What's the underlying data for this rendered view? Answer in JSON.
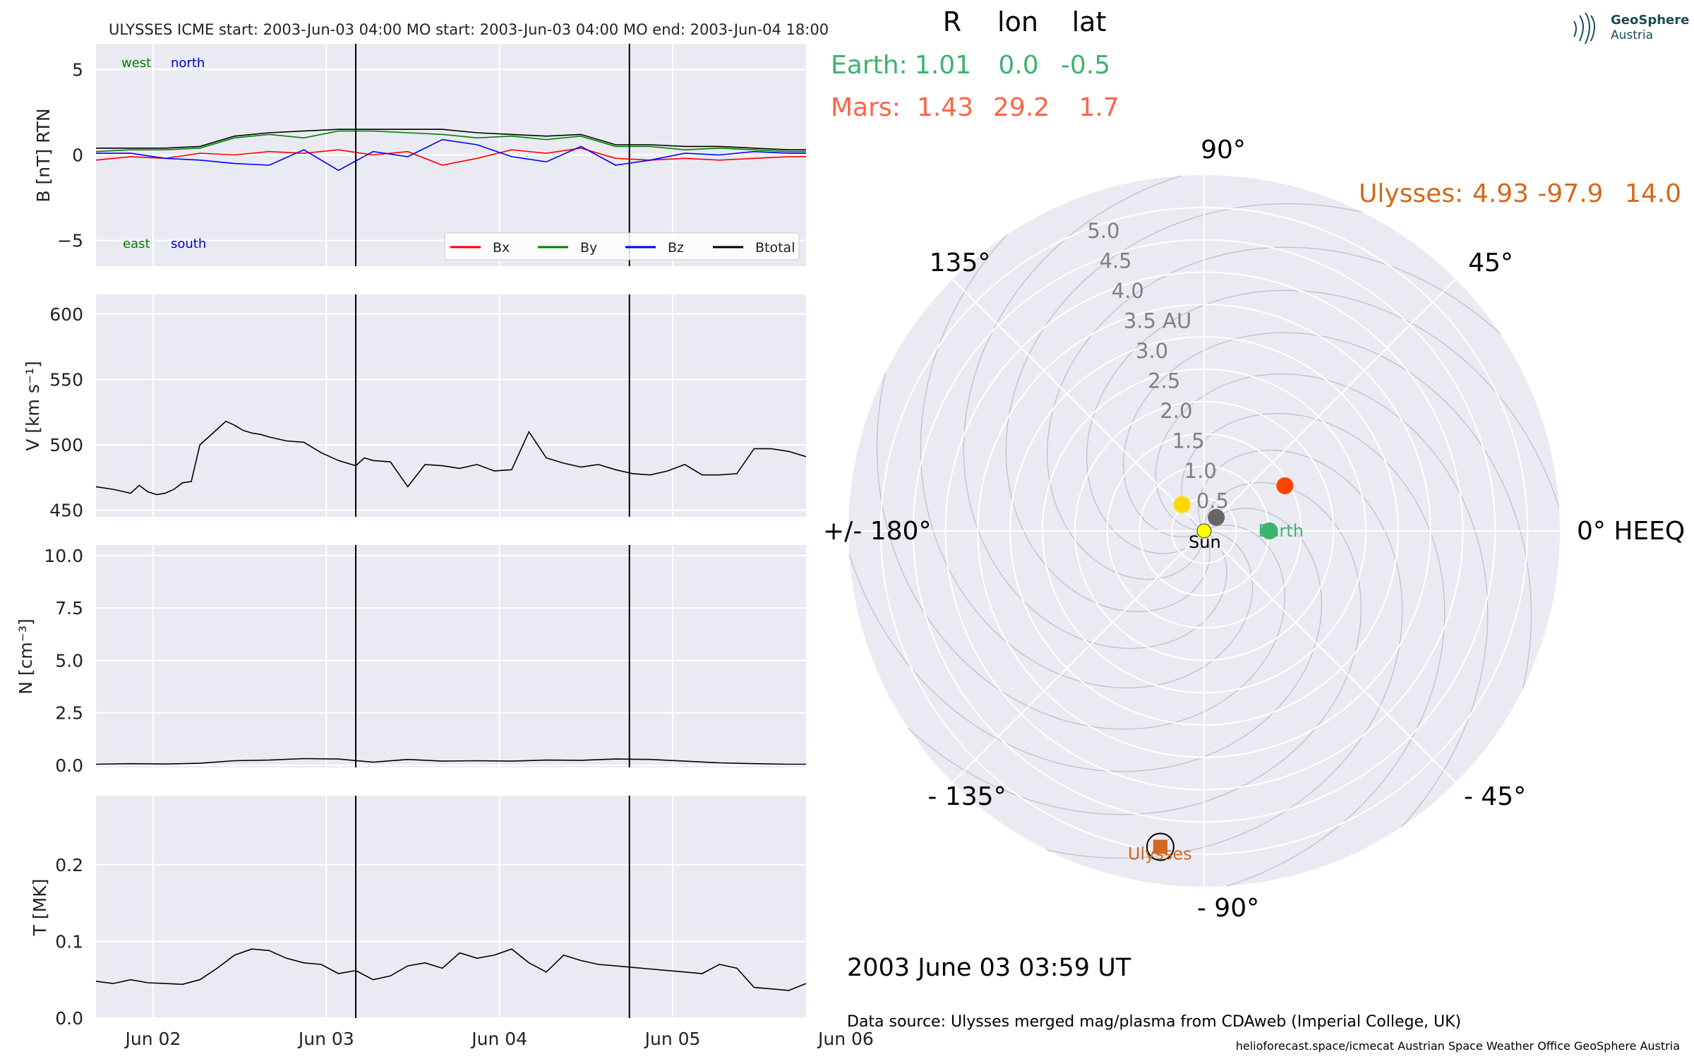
{
  "logo": {
    "line1": "GeoSphere",
    "line2": "Austria"
  },
  "header_title": "ULYSSES    ICME start: 2003-Jun-03 04:00   MO start: 2003-Jun-03 04:00   MO end: 2003-Jun-04 18:00",
  "chart_data": [
    {
      "type": "line",
      "panel": "magnetic field",
      "ylabel": "B [nT] RTN",
      "ylim": [
        -6.5,
        6.5
      ],
      "yticks": [
        "5",
        "0",
        "−5"
      ],
      "ytick_values": [
        5,
        0,
        -5
      ],
      "xlim": [
        0,
        4.1
      ],
      "annotations": {
        "west": "west",
        "north": "north",
        "east": "east",
        "south": "south"
      },
      "legend": [
        "Bx",
        "By",
        "Bz",
        "Btotal"
      ],
      "legend_placement": "lower-right",
      "series": [
        {
          "name": "Bx",
          "color": "#ff0000",
          "x": [
            0,
            0.2,
            0.4,
            0.6,
            0.8,
            1.0,
            1.2,
            1.4,
            1.6,
            1.8,
            2.0,
            2.2,
            2.4,
            2.6,
            2.8,
            3.0,
            3.2,
            3.4,
            3.6,
            3.8,
            4.0,
            4.1
          ],
          "values": [
            -0.3,
            -0.1,
            -0.2,
            0.1,
            0.0,
            0.2,
            0.1,
            0.3,
            0.0,
            0.2,
            -0.6,
            -0.2,
            0.3,
            0.1,
            0.4,
            -0.2,
            -0.3,
            -0.2,
            -0.3,
            -0.2,
            -0.1,
            -0.1
          ]
        },
        {
          "name": "By",
          "color": "#008000",
          "x": [
            0,
            0.2,
            0.4,
            0.6,
            0.8,
            1.0,
            1.2,
            1.4,
            1.6,
            1.8,
            2.0,
            2.2,
            2.4,
            2.6,
            2.8,
            3.0,
            3.2,
            3.4,
            3.6,
            3.8,
            4.0,
            4.1
          ],
          "values": [
            0.2,
            0.3,
            0.3,
            0.4,
            1.0,
            1.2,
            1.0,
            1.4,
            1.4,
            1.3,
            1.2,
            1.0,
            1.1,
            0.9,
            1.1,
            0.5,
            0.5,
            0.3,
            0.4,
            0.3,
            0.2,
            0.2
          ]
        },
        {
          "name": "Bz",
          "color": "#0000ff",
          "x": [
            0,
            0.2,
            0.4,
            0.6,
            0.8,
            1.0,
            1.2,
            1.4,
            1.6,
            1.8,
            2.0,
            2.2,
            2.4,
            2.6,
            2.8,
            3.0,
            3.2,
            3.4,
            3.6,
            3.8,
            4.0,
            4.1
          ],
          "values": [
            0.1,
            0.1,
            -0.2,
            -0.3,
            -0.5,
            -0.6,
            0.3,
            -0.9,
            0.2,
            -0.1,
            0.9,
            0.6,
            -0.1,
            -0.4,
            0.5,
            -0.6,
            -0.3,
            0.1,
            0.0,
            0.2,
            0.1,
            0.1
          ]
        },
        {
          "name": "Btotal",
          "color": "#000000",
          "x": [
            0,
            0.2,
            0.4,
            0.6,
            0.8,
            1.0,
            1.2,
            1.4,
            1.6,
            1.8,
            2.0,
            2.2,
            2.4,
            2.6,
            2.8,
            3.0,
            3.2,
            3.4,
            3.6,
            3.8,
            4.0,
            4.1
          ],
          "values": [
            0.4,
            0.4,
            0.4,
            0.5,
            1.1,
            1.3,
            1.4,
            1.5,
            1.5,
            1.5,
            1.5,
            1.3,
            1.2,
            1.1,
            1.2,
            0.6,
            0.6,
            0.5,
            0.5,
            0.4,
            0.3,
            0.3
          ]
        }
      ]
    },
    {
      "type": "line",
      "panel": "speed",
      "ylabel": "V [km s⁻¹]",
      "ylim": [
        445,
        615
      ],
      "yticks": [
        "600",
        "550",
        "500",
        "450"
      ],
      "ytick_values": [
        600,
        550,
        500,
        450
      ],
      "series": [
        {
          "name": "",
          "color": "#000000",
          "x": [
            0,
            0.1,
            0.2,
            0.25,
            0.3,
            0.35,
            0.4,
            0.45,
            0.5,
            0.55,
            0.6,
            0.7,
            0.75,
            0.8,
            0.85,
            0.9,
            0.95,
            1.0,
            1.1,
            1.2,
            1.3,
            1.4,
            1.5,
            1.55,
            1.6,
            1.7,
            1.8,
            1.9,
            2.0,
            2.1,
            2.2,
            2.3,
            2.4,
            2.5,
            2.6,
            2.7,
            2.8,
            2.9,
            3.0,
            3.1,
            3.2,
            3.3,
            3.4,
            3.5,
            3.6,
            3.7,
            3.8,
            3.9,
            4.0,
            4.1
          ],
          "values": [
            468,
            466,
            463,
            469,
            464,
            462,
            463,
            466,
            471,
            472,
            500,
            512,
            518,
            515,
            511,
            509,
            508,
            506,
            503,
            502,
            494,
            488,
            484,
            490,
            488,
            487,
            468,
            485,
            484,
            482,
            485,
            480,
            481,
            510,
            490,
            486,
            483,
            485,
            481,
            478,
            477,
            480,
            485,
            477,
            477,
            478,
            497,
            497,
            495,
            491
          ]
        }
      ]
    },
    {
      "type": "line",
      "panel": "density",
      "ylabel": "N [cm⁻³]",
      "ylim": [
        -0.1,
        10.5
      ],
      "yticks": [
        "10.0",
        "7.5",
        "5.0",
        "2.5",
        "0.0"
      ],
      "ytick_values": [
        10,
        7.5,
        5,
        2.5,
        0
      ],
      "series": [
        {
          "name": "",
          "color": "#000000",
          "x": [
            0,
            0.2,
            0.4,
            0.6,
            0.8,
            1.0,
            1.2,
            1.4,
            1.6,
            1.8,
            2.0,
            2.2,
            2.4,
            2.6,
            2.8,
            3.0,
            3.2,
            3.4,
            3.6,
            3.8,
            4.0,
            4.1
          ],
          "values": [
            0.05,
            0.08,
            0.06,
            0.1,
            0.22,
            0.25,
            0.32,
            0.3,
            0.15,
            0.28,
            0.2,
            0.22,
            0.2,
            0.25,
            0.24,
            0.3,
            0.28,
            0.2,
            0.12,
            0.08,
            0.05,
            0.05
          ]
        }
      ]
    },
    {
      "type": "line",
      "panel": "temperature",
      "ylabel": "T [MK]",
      "ylim": [
        0,
        0.29
      ],
      "yticks": [
        "0.2",
        "0.1",
        "0.0"
      ],
      "ytick_values": [
        0.2,
        0.1,
        0.0
      ],
      "xticks": [
        "Jun 02",
        "Jun 03",
        "Jun 04",
        "Jun 05",
        "Jun 06"
      ],
      "xtick_values": [
        0.33,
        1.33,
        2.33,
        3.33,
        4.33
      ],
      "series": [
        {
          "name": "",
          "color": "#000000",
          "x": [
            0,
            0.1,
            0.2,
            0.3,
            0.4,
            0.5,
            0.6,
            0.7,
            0.8,
            0.9,
            1.0,
            1.1,
            1.2,
            1.3,
            1.4,
            1.5,
            1.6,
            1.7,
            1.8,
            1.9,
            2.0,
            2.1,
            2.2,
            2.3,
            2.4,
            2.5,
            2.6,
            2.7,
            2.8,
            2.9,
            3.0,
            3.1,
            3.2,
            3.3,
            3.4,
            3.5,
            3.6,
            3.7,
            3.8,
            3.9,
            4.0,
            4.1
          ],
          "values": [
            0.048,
            0.045,
            0.05,
            0.046,
            0.045,
            0.044,
            0.05,
            0.065,
            0.082,
            0.09,
            0.088,
            0.078,
            0.072,
            0.07,
            0.058,
            0.062,
            0.05,
            0.055,
            0.068,
            0.072,
            0.065,
            0.085,
            0.078,
            0.082,
            0.09,
            0.072,
            0.06,
            0.082,
            0.075,
            0.07,
            0.068,
            0.066,
            0.064,
            0.062,
            0.06,
            0.058,
            0.07,
            0.065,
            0.04,
            0.038,
            0.036,
            0.045
          ]
        }
      ]
    },
    {
      "type": "scatter",
      "panel": "polar position plot",
      "projection": "polar",
      "angle_labels": {
        "a0": "0° HEEQ",
        "a45": "45°",
        "a90": "90°",
        "a135": "135°",
        "a180": "+/- 180°",
        "am135": "- 135°",
        "am90": "- 90°",
        "am45": "- 45°"
      },
      "radial_ticks": [
        "0.5",
        "1.0",
        "1.5",
        "2.0",
        "2.5",
        "3.0",
        "3.5 AU",
        "4.0",
        "4.5",
        "5.0"
      ],
      "radial_tick_values": [
        0.5,
        1.0,
        1.5,
        2.0,
        2.5,
        3.0,
        3.5,
        4.0,
        4.5,
        5.0
      ],
      "rlim": [
        0,
        5.5
      ],
      "points": [
        {
          "name": "Sun",
          "r": 0.0,
          "lon": 0.0,
          "color": "#ffff00"
        },
        {
          "name": "Earth",
          "r": 1.01,
          "lon": 0.0,
          "color": "#3cb371"
        },
        {
          "name": "Mars",
          "r": 1.43,
          "lon": 29.2,
          "color": "#ff4500"
        },
        {
          "name": "Ulysses",
          "r": 4.93,
          "lon": -97.9,
          "color": "#d2691e"
        },
        {
          "name": "",
          "r": 0.53,
          "lon": 130.0,
          "color": "#ffd700"
        },
        {
          "name": "",
          "r": 0.28,
          "lon": 48.0,
          "color": "#666666"
        }
      ]
    }
  ],
  "position_table": {
    "headers": [
      "R",
      "lon",
      "lat"
    ],
    "rows": [
      {
        "label": "Earth:",
        "R": "1.01",
        "lon": "0.0",
        "lat": "-0.5",
        "color": "#3cb371"
      },
      {
        "label": "Mars:",
        "R": "1.43",
        "lon": "29.2",
        "lat": "1.7",
        "color": "#ff6347"
      }
    ],
    "ulysses": {
      "label": "Ulysses:",
      "R": "4.93",
      "lon": "-97.9",
      "lat": "14.0",
      "color": "#d2691e"
    }
  },
  "labels": {
    "sun": "Sun",
    "earth": "Earth",
    "ulysses": "Ulysses"
  },
  "timestamp": "2003 June 03  03:59 UT",
  "data_source": "Data source: Ulysses merged mag/plasma from CDAweb (Imperial College, UK)",
  "footer": "helioforecast.space/icmecat   Austrian Space Weather Office   GeoSphere Austria",
  "events": {
    "mo_start_x": 1.5,
    "mo_end_x": 3.08
  }
}
